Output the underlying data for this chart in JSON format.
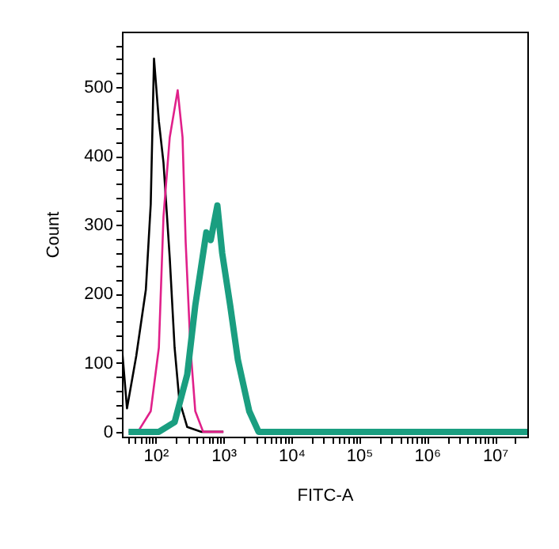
{
  "chart_data": {
    "type": "line",
    "xlabel": "FITC-A",
    "ylabel": "Count",
    "log": "x",
    "grid": false,
    "marker": "none",
    "line_style": "solid",
    "xlim": [
      32,
      30000000
    ],
    "ylim": [
      -7,
      580
    ],
    "xticks": [
      {
        "value": 40,
        "label": null
      },
      {
        "value": 50,
        "label": null
      },
      {
        "value": 60,
        "label": null
      },
      {
        "value": 70,
        "label": null
      },
      {
        "value": 80,
        "label": null
      },
      {
        "value": 90,
        "label": null
      },
      {
        "value": 100,
        "label": "10²"
      },
      {
        "value": 200,
        "label": null
      },
      {
        "value": 300,
        "label": null
      },
      {
        "value": 400,
        "label": null
      },
      {
        "value": 500,
        "label": null
      },
      {
        "value": 600,
        "label": null
      },
      {
        "value": 700,
        "label": null
      },
      {
        "value": 800,
        "label": null
      },
      {
        "value": 900,
        "label": null
      },
      {
        "value": 1000,
        "label": "10³"
      },
      {
        "value": 2000,
        "label": null
      },
      {
        "value": 3000,
        "label": null
      },
      {
        "value": 4000,
        "label": null
      },
      {
        "value": 5000,
        "label": null
      },
      {
        "value": 6000,
        "label": null
      },
      {
        "value": 7000,
        "label": null
      },
      {
        "value": 8000,
        "label": null
      },
      {
        "value": 9000,
        "label": null
      },
      {
        "value": 10000,
        "label": "10⁴"
      },
      {
        "value": 20000,
        "label": null
      },
      {
        "value": 30000,
        "label": null
      },
      {
        "value": 40000,
        "label": null
      },
      {
        "value": 50000,
        "label": null
      },
      {
        "value": 60000,
        "label": null
      },
      {
        "value": 70000,
        "label": null
      },
      {
        "value": 80000,
        "label": null
      },
      {
        "value": 90000,
        "label": null
      },
      {
        "value": 100000,
        "label": "10⁵"
      },
      {
        "value": 200000,
        "label": null
      },
      {
        "value": 300000,
        "label": null
      },
      {
        "value": 400000,
        "label": null
      },
      {
        "value": 500000,
        "label": null
      },
      {
        "value": 600000,
        "label": null
      },
      {
        "value": 700000,
        "label": null
      },
      {
        "value": 800000,
        "label": null
      },
      {
        "value": 900000,
        "label": null
      },
      {
        "value": 1000000,
        "label": "10⁶"
      },
      {
        "value": 2000000,
        "label": null
      },
      {
        "value": 3000000,
        "label": null
      },
      {
        "value": 4000000,
        "label": null
      },
      {
        "value": 5000000,
        "label": null
      },
      {
        "value": 6000000,
        "label": null
      },
      {
        "value": 7000000,
        "label": null
      },
      {
        "value": 8000000,
        "label": null
      },
      {
        "value": 9000000,
        "label": null
      },
      {
        "value": 10000000,
        "label": "10⁷"
      },
      {
        "value": 20000000,
        "label": null
      }
    ],
    "yticks": [
      0,
      {
        "value": 20,
        "label": null
      },
      {
        "value": 40,
        "label": null
      },
      {
        "value": 60,
        "label": null
      },
      {
        "value": 80,
        "label": null
      },
      100,
      {
        "value": 120,
        "label": null
      },
      {
        "value": 140,
        "label": null
      },
      {
        "value": 160,
        "label": null
      },
      {
        "value": 180,
        "label": null
      },
      200,
      {
        "value": 220,
        "label": null
      },
      {
        "value": 240,
        "label": null
      },
      {
        "value": 260,
        "label": null
      },
      {
        "value": 280,
        "label": null
      },
      300,
      {
        "value": 320,
        "label": null
      },
      {
        "value": 340,
        "label": null
      },
      {
        "value": 360,
        "label": null
      },
      {
        "value": 380,
        "label": null
      },
      400,
      {
        "value": 420,
        "label": null
      },
      {
        "value": 440,
        "label": null
      },
      {
        "value": 460,
        "label": null
      },
      {
        "value": 480,
        "label": null
      },
      500,
      {
        "value": 520,
        "label": null
      },
      {
        "value": 540,
        "label": null
      },
      {
        "value": 560,
        "label": null
      }
    ],
    "series": [
      {
        "color": "#000000",
        "x": [
          32,
          38,
          52,
          72,
          85,
          95,
          112,
          131,
          162,
          191,
          224,
          293,
          476,
          1000
        ],
        "values": [
          122,
          34,
          110,
          206,
          330,
          541,
          450,
          390,
          252,
          122,
          46,
          7,
          0,
          0
        ]
      },
      {
        "color": "#e0208a",
        "x": [
          40,
          55,
          85,
          112,
          131,
          162,
          212,
          250,
          278,
          327,
          385,
          503,
          1000
        ],
        "values": [
          0,
          0,
          30,
          122,
          312,
          427,
          495,
          427,
          275,
          122,
          30,
          0,
          0
        ]
      },
      {
        "color": "#1a9e80",
        "x": [
          40,
          112,
          191,
          293,
          385,
          560,
          650,
          815,
          960,
          1260,
          1630,
          2400,
          3300,
          30000000
        ],
        "values": [
          0,
          0,
          14,
          83,
          183,
          289,
          278,
          328,
          259,
          183,
          105,
          30,
          0,
          0
        ]
      }
    ]
  }
}
